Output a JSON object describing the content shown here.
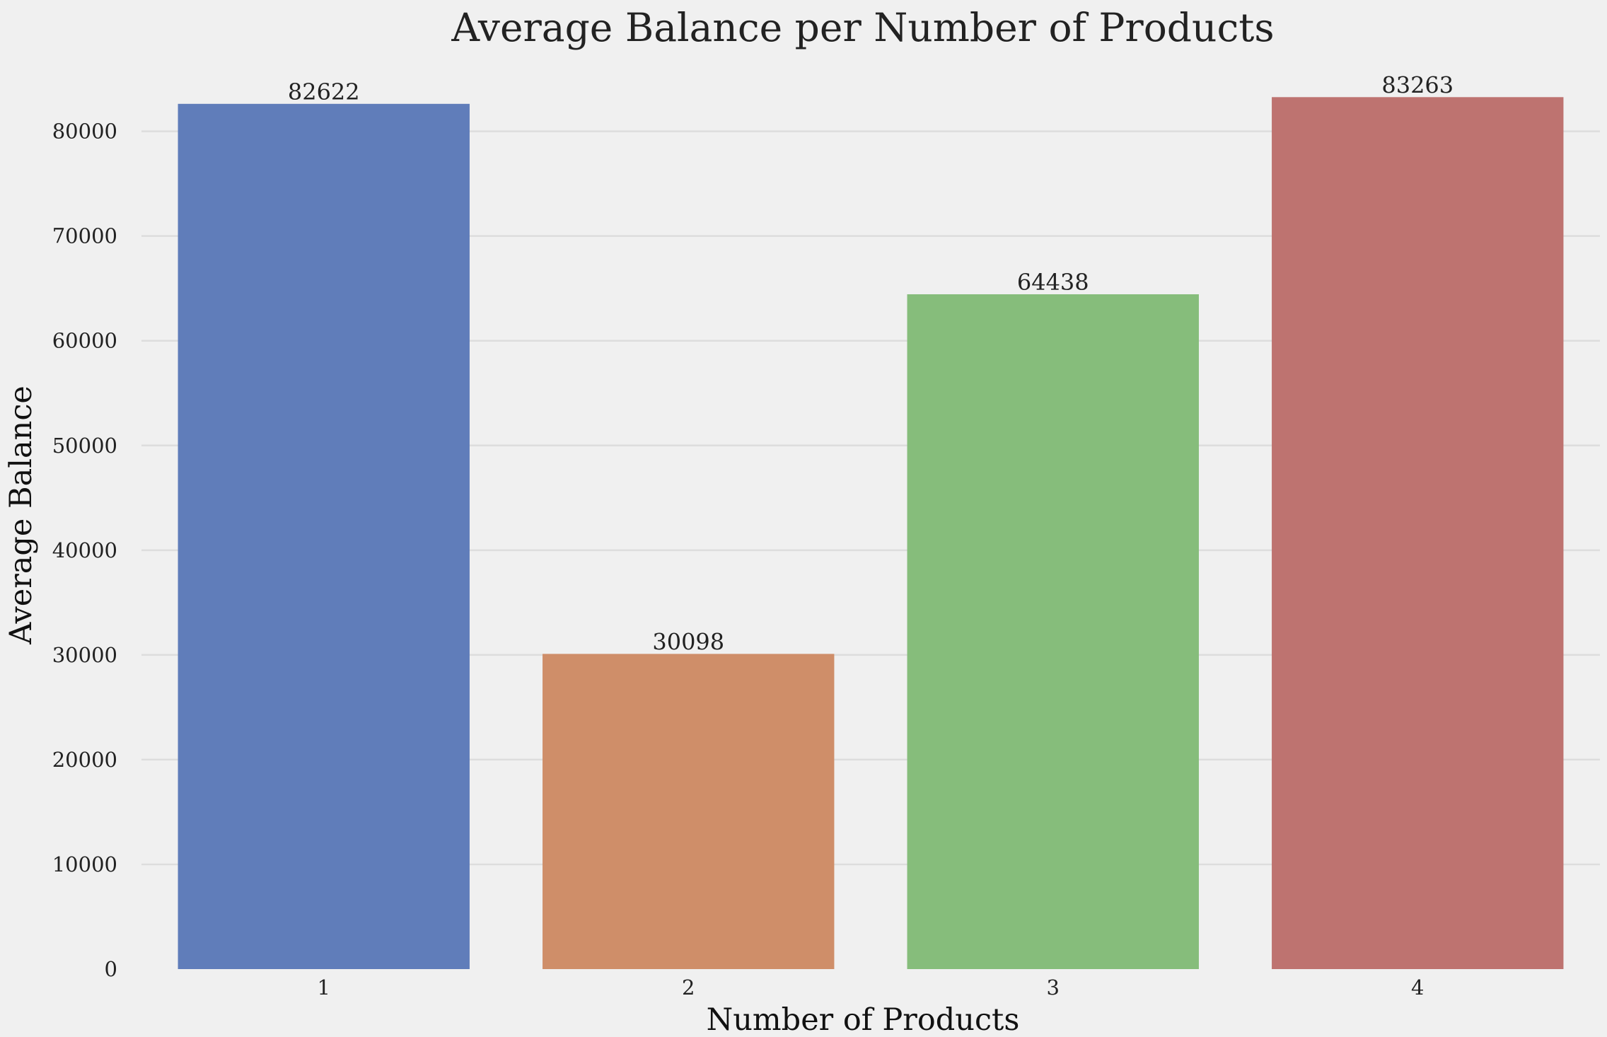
{
  "chart_data": {
    "type": "bar",
    "title": "Average Balance per Number of Products",
    "xlabel": "Number of Products",
    "ylabel": "Average Balance",
    "categories": [
      "1",
      "2",
      "3",
      "4"
    ],
    "values": [
      82622,
      30098,
      64438,
      83263
    ],
    "data_labels": [
      "82622",
      "30098",
      "64438",
      "83263"
    ],
    "colors": [
      "#607dba",
      "#cf8e69",
      "#86bd7b",
      "#be7370"
    ],
    "ylim": [
      0,
      87000
    ],
    "yticks": [
      0,
      10000,
      20000,
      30000,
      40000,
      50000,
      60000,
      70000,
      80000
    ],
    "ytick_labels": [
      "0",
      "10000",
      "20000",
      "30000",
      "40000",
      "50000",
      "60000",
      "70000",
      "80000"
    ],
    "grid": "horizontal",
    "legend": "none",
    "background": "#f0f0f0"
  }
}
